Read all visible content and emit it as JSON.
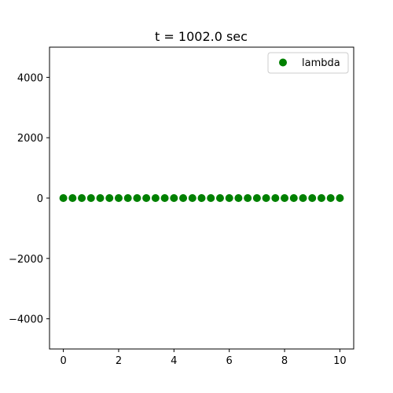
{
  "chart_data": {
    "type": "scatter",
    "title": "t = 1002.0 sec",
    "xlabel": "",
    "ylabel": "",
    "xlim": [
      -0.5,
      10.5
    ],
    "ylim": [
      -5000,
      5000
    ],
    "grid": false,
    "legend_position": "top-right",
    "x_ticks": [
      0,
      2,
      4,
      6,
      8,
      10
    ],
    "x_tick_labels": [
      "0",
      "2",
      "4",
      "6",
      "8",
      "10"
    ],
    "y_ticks": [
      4000,
      2000,
      0,
      -2000,
      -4000
    ],
    "y_tick_labels": [
      "4000",
      "2000",
      "0",
      "−2000",
      "−4000"
    ],
    "series": [
      {
        "name": "lambda",
        "color": "#008000",
        "x": [
          0,
          0.3333,
          0.6667,
          1,
          1.3333,
          1.6667,
          2,
          2.3333,
          2.6667,
          3,
          3.3333,
          3.6667,
          4,
          4.3333,
          4.6667,
          5,
          5.3333,
          5.6667,
          6,
          6.3333,
          6.6667,
          7,
          7.3333,
          7.6667,
          8,
          8.3333,
          8.6667,
          9,
          9.3333,
          9.6667,
          10
        ],
        "y": [
          0,
          0,
          0,
          0,
          0,
          0,
          0,
          0,
          0,
          0,
          0,
          0,
          0,
          0,
          0,
          0,
          0,
          0,
          0,
          0,
          0,
          0,
          0,
          0,
          0,
          0,
          0,
          0,
          0,
          0,
          0
        ]
      }
    ]
  }
}
